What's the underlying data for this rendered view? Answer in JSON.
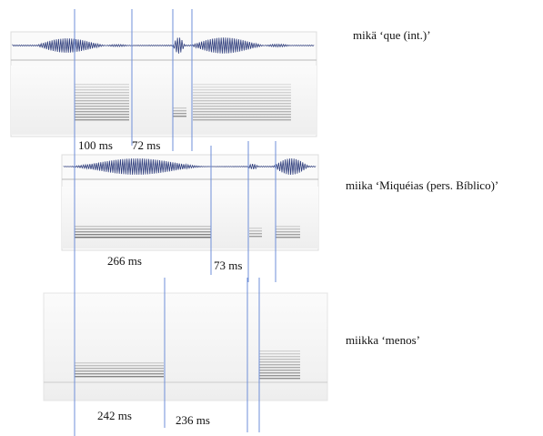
{
  "panels": [
    {
      "label": "mikä ‘que (int.)’",
      "durations": [
        "100 ms",
        "72 ms"
      ]
    },
    {
      "label": "miika ‘Miquéias (pers. Bíblico)’",
      "durations": [
        "266 ms",
        "73 ms"
      ]
    },
    {
      "label": "miikka ‘menos’",
      "durations": [
        "242 ms",
        "236 ms"
      ]
    }
  ]
}
